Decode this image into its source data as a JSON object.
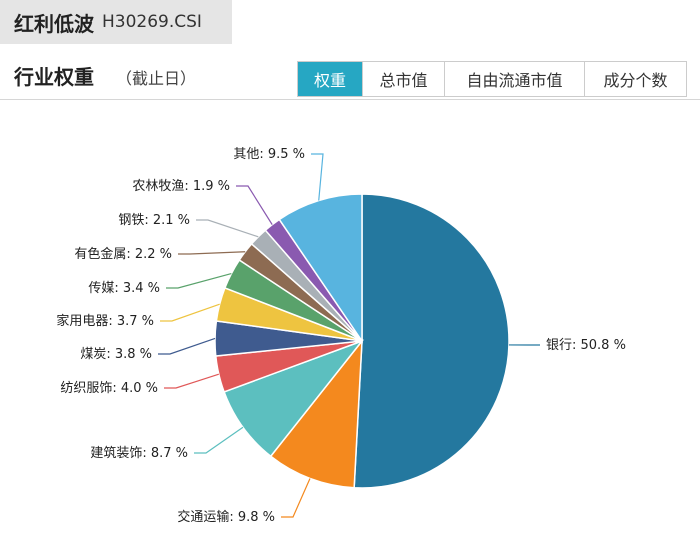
{
  "header": {
    "title": "红利低波",
    "code": "H30269.CSI"
  },
  "section": {
    "title": "行业权重",
    "note": "（截止日）"
  },
  "tabs": [
    {
      "label": "权重",
      "active": true
    },
    {
      "label": "总市值",
      "active": false
    },
    {
      "label": "自由流通市值",
      "active": false
    },
    {
      "label": "成分个数",
      "active": false
    }
  ],
  "colors": {
    "accent": "#26a7c3"
  },
  "chart_data": {
    "type": "pie",
    "start": "12 o'clock, clockwise",
    "slices": [
      {
        "name": "银行",
        "value": 50.8,
        "label": "银行: 50.8 %",
        "color": "#24789f"
      },
      {
        "name": "交通运输",
        "value": 9.8,
        "label": "交通运输: 9.8 %",
        "color": "#f4891e"
      },
      {
        "name": "建筑装饰",
        "value": 8.7,
        "label": "建筑装饰: 8.7 %",
        "color": "#5cbfbf"
      },
      {
        "name": "纺织服饰",
        "value": 4.0,
        "label": "纺织服饰: 4.0 %",
        "color": "#e05858"
      },
      {
        "name": "煤炭",
        "value": 3.8,
        "label": "煤炭: 3.8 %",
        "color": "#3f5b8f"
      },
      {
        "name": "家用电器",
        "value": 3.7,
        "label": "家用电器: 3.7 %",
        "color": "#eec440"
      },
      {
        "name": "传媒",
        "value": 3.4,
        "label": "传媒: 3.4 %",
        "color": "#59a26b"
      },
      {
        "name": "有色金属",
        "value": 2.2,
        "label": "有色金属: 2.2 %",
        "color": "#8d6b52"
      },
      {
        "name": "钢铁",
        "value": 2.1,
        "label": "钢铁: 2.1 %",
        "color": "#a9b0b6"
      },
      {
        "name": "农林牧渔",
        "value": 1.9,
        "label": "农林牧渔: 1.9 %",
        "color": "#8a5ab0"
      },
      {
        "name": "其他",
        "value": 9.5,
        "label": "其他: 9.5 %",
        "color": "#58b4df"
      }
    ]
  }
}
